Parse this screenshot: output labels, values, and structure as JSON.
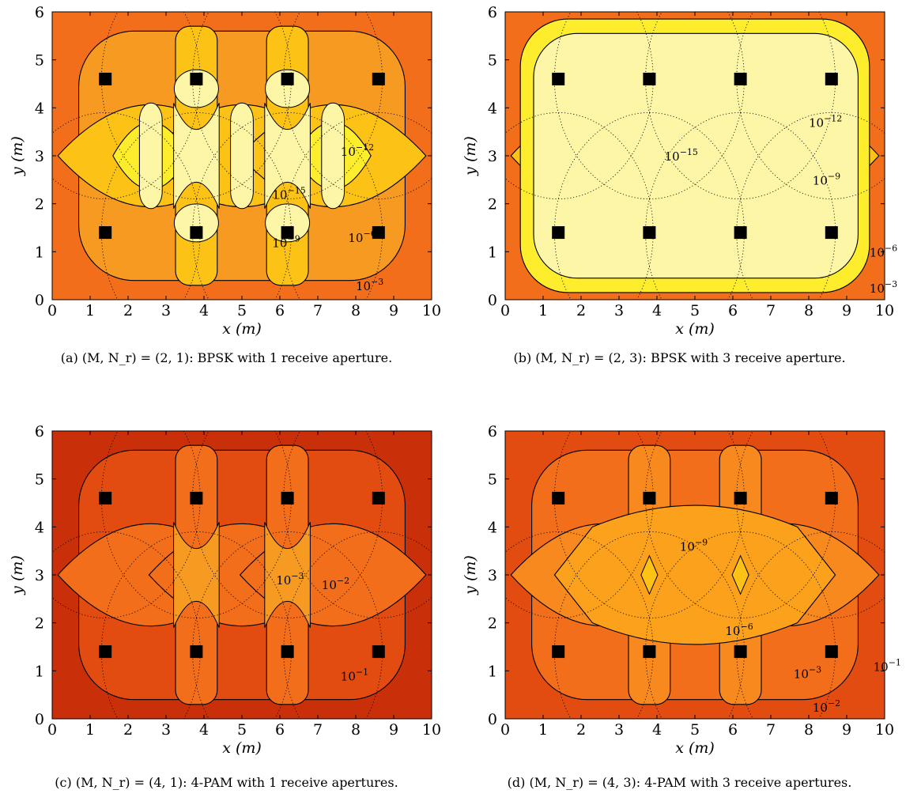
{
  "chart_data": [
    {
      "id": "a",
      "type": "heatmap",
      "caption": "(a) (M, N_r) = (2, 1): BPSK with 1 receive aperture.",
      "xlabel": "x (m)",
      "ylabel": "y (m)",
      "xlim": [
        0,
        10
      ],
      "ylim": [
        0,
        6
      ],
      "xticks": [
        0,
        1,
        2,
        3,
        4,
        5,
        6,
        7,
        8,
        9,
        10
      ],
      "yticks": [
        0,
        1,
        2,
        3,
        4,
        5,
        6
      ],
      "transmitters": [
        [
          1.4,
          1.4
        ],
        [
          3.8,
          1.4
        ],
        [
          6.2,
          1.4
        ],
        [
          8.6,
          1.4
        ],
        [
          1.4,
          4.6
        ],
        [
          3.8,
          4.6
        ],
        [
          6.2,
          4.6
        ],
        [
          8.6,
          4.6
        ]
      ],
      "contour_labels": [
        {
          "text": "10",
          "exp": "−12",
          "x": 7.6,
          "y": 3.0
        },
        {
          "text": "10",
          "exp": "−15",
          "x": 5.8,
          "y": 2.1
        },
        {
          "text": "10",
          "exp": "−9",
          "x": 5.8,
          "y": 1.1
        },
        {
          "text": "10",
          "exp": "−6",
          "x": 7.8,
          "y": 1.2
        },
        {
          "text": "10",
          "exp": "−3",
          "x": 8.0,
          "y": 0.2
        }
      ],
      "colors": {
        "outer": "#f26e1b",
        "ring": "#f79a22",
        "mid": "#fcc216",
        "high": "#fded2c",
        "best": "#fdf6a6"
      }
    },
    {
      "id": "b",
      "type": "heatmap",
      "caption": "(b) (M, N_r) = (2, 3): BPSK with 3 receive aperture.",
      "xlabel": "x (m)",
      "ylabel": "y (m)",
      "xlim": [
        0,
        10
      ],
      "ylim": [
        0,
        6
      ],
      "xticks": [
        0,
        1,
        2,
        3,
        4,
        5,
        6,
        7,
        8,
        9,
        10
      ],
      "yticks": [
        0,
        1,
        2,
        3,
        4,
        5,
        6
      ],
      "transmitters": [
        [
          1.4,
          1.4
        ],
        [
          3.8,
          1.4
        ],
        [
          6.2,
          1.4
        ],
        [
          8.6,
          1.4
        ],
        [
          1.4,
          4.6
        ],
        [
          3.8,
          4.6
        ],
        [
          6.2,
          4.6
        ],
        [
          8.6,
          4.6
        ]
      ],
      "contour_labels": [
        {
          "text": "10",
          "exp": "−15",
          "x": 4.2,
          "y": 2.9
        },
        {
          "text": "10",
          "exp": "−12",
          "x": 8.0,
          "y": 3.6
        },
        {
          "text": "10",
          "exp": "−9",
          "x": 8.1,
          "y": 2.4
        },
        {
          "text": "10",
          "exp": "−6",
          "x": 9.6,
          "y": 0.9
        },
        {
          "text": "10",
          "exp": "−3",
          "x": 9.6,
          "y": 0.15
        }
      ],
      "colors": {
        "outer": "#f26e1b",
        "ring": "#f79a22",
        "mid": "#fcc216",
        "high": "#fded2c",
        "best": "#fdf6a6"
      }
    },
    {
      "id": "c",
      "type": "heatmap",
      "caption": "(c) (M, N_r) = (4, 1): 4-PAM with 1 receive apertures.",
      "xlabel": "x (m)",
      "ylabel": "y (m)",
      "xlim": [
        0,
        10
      ],
      "ylim": [
        0,
        6
      ],
      "xticks": [
        0,
        1,
        2,
        3,
        4,
        5,
        6,
        7,
        8,
        9,
        10
      ],
      "yticks": [
        0,
        1,
        2,
        3,
        4,
        5,
        6
      ],
      "transmitters": [
        [
          1.4,
          1.4
        ],
        [
          3.8,
          1.4
        ],
        [
          6.2,
          1.4
        ],
        [
          8.6,
          1.4
        ],
        [
          1.4,
          4.6
        ],
        [
          3.8,
          4.6
        ],
        [
          6.2,
          4.6
        ],
        [
          8.6,
          4.6
        ]
      ],
      "contour_labels": [
        {
          "text": "10",
          "exp": "−3",
          "x": 5.9,
          "y": 2.8
        },
        {
          "text": "10",
          "exp": "−2",
          "x": 7.1,
          "y": 2.7
        },
        {
          "text": "10",
          "exp": "−1",
          "x": 7.6,
          "y": 0.8
        }
      ],
      "colors": {
        "outer": "#c9300a",
        "ring": "#e24c10",
        "mid": "#f26e1b",
        "high": "#f79a22",
        "best": "#fcc216"
      }
    },
    {
      "id": "d",
      "type": "heatmap",
      "caption": "(d) (M, N_r) = (4, 3): 4-PAM with 3 receive apertures.",
      "xlabel": "x (m)",
      "ylabel": "y (m)",
      "xlim": [
        0,
        10
      ],
      "ylim": [
        0,
        6
      ],
      "xticks": [
        0,
        1,
        2,
        3,
        4,
        5,
        6,
        7,
        8,
        9,
        10
      ],
      "yticks": [
        0,
        1,
        2,
        3,
        4,
        5,
        6
      ],
      "transmitters": [
        [
          1.4,
          1.4
        ],
        [
          3.8,
          1.4
        ],
        [
          6.2,
          1.4
        ],
        [
          8.6,
          1.4
        ],
        [
          1.4,
          4.6
        ],
        [
          3.8,
          4.6
        ],
        [
          6.2,
          4.6
        ],
        [
          8.6,
          4.6
        ]
      ],
      "contour_labels": [
        {
          "text": "10",
          "exp": "−9",
          "x": 4.6,
          "y": 3.5
        },
        {
          "text": "10",
          "exp": "−6",
          "x": 5.8,
          "y": 1.75
        },
        {
          "text": "10",
          "exp": "−3",
          "x": 7.6,
          "y": 0.85
        },
        {
          "text": "10",
          "exp": "−2",
          "x": 8.1,
          "y": 0.15
        },
        {
          "text": "10",
          "exp": "−1",
          "x": 9.7,
          "y": 1.0
        }
      ],
      "colors": {
        "outer": "#e24c10",
        "ring": "#f26e1b",
        "mid": "#f7891e",
        "high": "#fba11b",
        "best": "#fcc216"
      }
    }
  ]
}
